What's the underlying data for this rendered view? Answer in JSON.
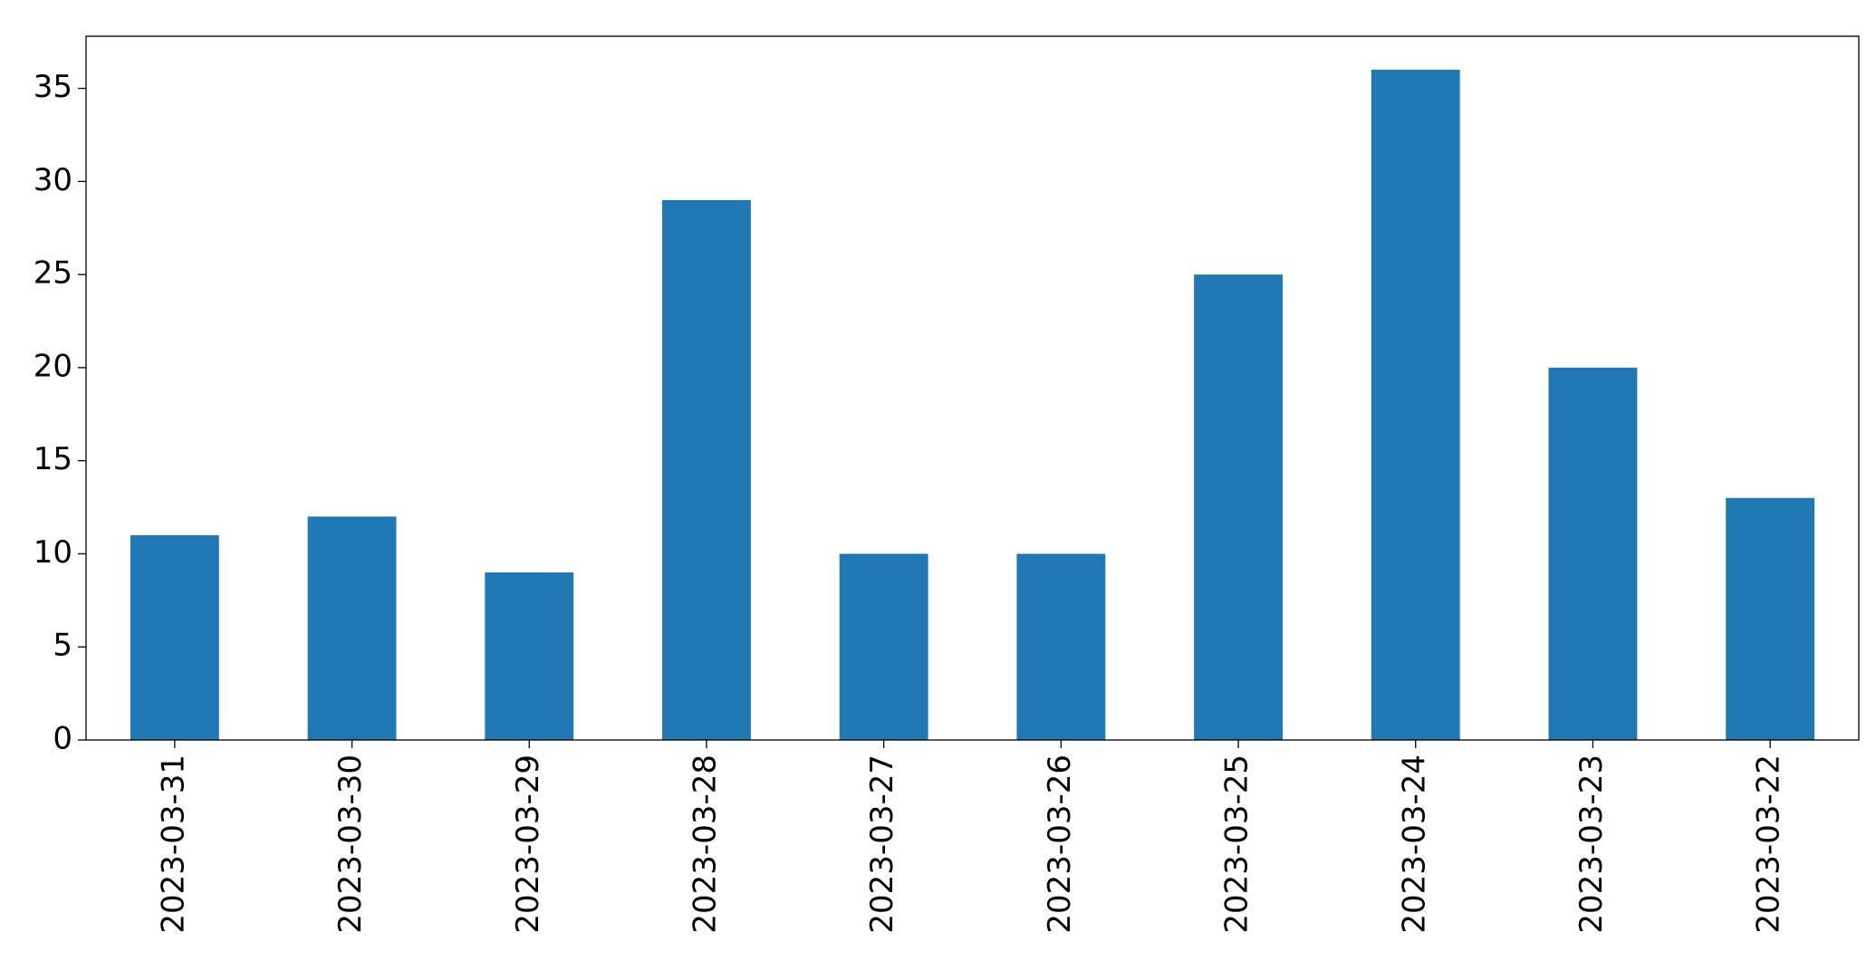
{
  "chart_data": {
    "type": "bar",
    "categories": [
      "2023-03-31",
      "2023-03-30",
      "2023-03-29",
      "2023-03-28",
      "2023-03-27",
      "2023-03-26",
      "2023-03-25",
      "2023-03-24",
      "2023-03-23",
      "2023-03-22"
    ],
    "values": [
      11,
      12,
      9,
      29,
      10,
      10,
      25,
      36,
      20,
      13
    ],
    "color": "#1f77b4",
    "ylim": [
      0,
      37.8
    ],
    "yticks": [
      0,
      5,
      10,
      15,
      20,
      25,
      30,
      35
    ],
    "grid": false
  }
}
